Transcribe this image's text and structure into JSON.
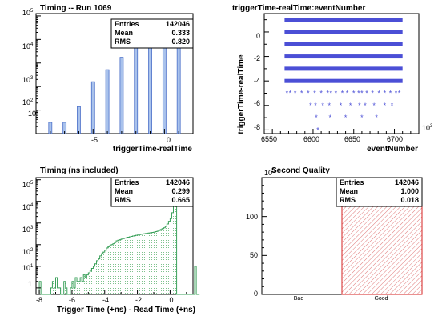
{
  "chart_data": [
    {
      "type": "bar",
      "title": "Timing -- Run 1069",
      "xlabel": "triggerTime-realTime",
      "ylabel": "",
      "yscale": "log",
      "xlim": [
        -9,
        2
      ],
      "ylim": [
        1,
        100000
      ],
      "x_ticks": [
        "-5",
        "0"
      ],
      "y_ticks": [
        "10",
        "10",
        "10",
        "10",
        "10"
      ],
      "y_tick_exponents": [
        "1",
        "2",
        "3",
        "4",
        "5"
      ],
      "bar_color": "#a9c2ec",
      "bar_edge": "#4a6fc9",
      "x": [
        -8,
        -7,
        -6,
        -5,
        -4,
        -3,
        -2,
        -1,
        0,
        1
      ],
      "values": [
        3,
        3,
        14,
        160,
        520,
        1750,
        5000,
        12000,
        50000,
        70000
      ],
      "stats": {
        "labels": [
          "Entries",
          "Mean",
          "RMS"
        ],
        "values": [
          "142046",
          "0.333",
          "0.820"
        ]
      }
    },
    {
      "type": "scatter",
      "title": "triggerTime-realTime:eventNumber",
      "xlabel": "eventNumber",
      "ylabel": "triggerTime-realTime",
      "x_multiplier_base": "10",
      "x_multiplier_exponent": "3",
      "xlim": [
        6540,
        6730
      ],
      "ylim": [
        -8.3,
        1.5
      ],
      "x_ticks": [
        "6550",
        "6600",
        "6650",
        "6700"
      ],
      "y_ticks": [
        "-8",
        "-6",
        "-4",
        "-2",
        "0"
      ],
      "marker_color": "#4b4fd6",
      "bands": [
        {
          "y": 1,
          "x_range": [
            6565,
            6710
          ]
        },
        {
          "y": 0,
          "x_range": [
            6565,
            6710
          ]
        },
        {
          "y": -1,
          "x_range": [
            6565,
            6710
          ]
        },
        {
          "y": -2,
          "x_range": [
            6565,
            6710
          ]
        },
        {
          "y": -3,
          "x_range": [
            6565,
            6710
          ]
        },
        {
          "y": -4,
          "x_range": [
            6565,
            6710
          ]
        }
      ],
      "points": [
        [
          6568,
          -5
        ],
        [
          6572,
          -5
        ],
        [
          6578,
          -5
        ],
        [
          6586,
          -5
        ],
        [
          6594,
          -5
        ],
        [
          6602,
          -5
        ],
        [
          6610,
          -5
        ],
        [
          6618,
          -5
        ],
        [
          6622,
          -5
        ],
        [
          6628,
          -5
        ],
        [
          6636,
          -5
        ],
        [
          6642,
          -5
        ],
        [
          6650,
          -5
        ],
        [
          6656,
          -5
        ],
        [
          6660,
          -5
        ],
        [
          6666,
          -5
        ],
        [
          6673,
          -5
        ],
        [
          6681,
          -5
        ],
        [
          6688,
          -5
        ],
        [
          6695,
          -5
        ],
        [
          6702,
          -5
        ],
        [
          6706,
          -5
        ],
        [
          6597,
          -6
        ],
        [
          6603,
          -6
        ],
        [
          6612,
          -6
        ],
        [
          6620,
          -6
        ],
        [
          6634,
          -6
        ],
        [
          6646,
          -6
        ],
        [
          6657,
          -6
        ],
        [
          6664,
          -6
        ],
        [
          6675,
          -6
        ],
        [
          6688,
          -6
        ],
        [
          6697,
          -6
        ],
        [
          6604,
          -7
        ],
        [
          6621,
          -7
        ],
        [
          6640,
          -7
        ],
        [
          6660,
          -7
        ],
        [
          6678,
          -7
        ],
        [
          6606,
          -8
        ]
      ]
    },
    {
      "type": "bar",
      "title": "Timing (ns included)",
      "xlabel": "Trigger Time (+ns) - Read Time (+ns)",
      "ylabel": "",
      "yscale": "log",
      "xlim": [
        -8.2,
        1.4
      ],
      "ylim": [
        0.5,
        100000
      ],
      "x_ticks": [
        "-8",
        "-6",
        "-4",
        "-2",
        "0"
      ],
      "y_ticks": [
        "1",
        "10",
        "10",
        "10",
        "10",
        "10"
      ],
      "y_tick_exponents": [
        "",
        "1",
        "2",
        "3",
        "4",
        "5"
      ],
      "fill_color": "#d7ebd9",
      "line_color": "#3aa05a",
      "bin_width": 0.1,
      "x_start": -8,
      "values": [
        2,
        0,
        0,
        0,
        0,
        0,
        0,
        1,
        2,
        1,
        3,
        1,
        1,
        0,
        0,
        2,
        1,
        0,
        0,
        1,
        2,
        1,
        3,
        2,
        2,
        3,
        2,
        4,
        3,
        4,
        5,
        6,
        8,
        10,
        13,
        18,
        22,
        30,
        38,
        45,
        55,
        70,
        80,
        90,
        100,
        110,
        130,
        150,
        160,
        170,
        180,
        190,
        200,
        210,
        220,
        230,
        240,
        250,
        260,
        270,
        280,
        290,
        300,
        310,
        320,
        330,
        340,
        350,
        360,
        370,
        380,
        400,
        420,
        450,
        500,
        550,
        600,
        700,
        900,
        1200,
        1600,
        3000,
        10000,
        40000,
        0,
        0,
        0,
        0,
        0,
        0,
        0,
        0,
        0,
        0,
        0,
        10,
        0,
        0
      ],
      "stats": {
        "labels": [
          "Entries",
          "Mean",
          "RMS"
        ],
        "values": [
          "142046",
          "0.299",
          "0.665"
        ]
      }
    },
    {
      "type": "bar",
      "title": "Second Quality",
      "xlabel": "",
      "ylabel": "",
      "y_multiplier_base": "10",
      "y_multiplier_exponent": "3",
      "categories": [
        "Bad",
        "Good"
      ],
      "values": [
        0,
        142.0
      ],
      "ylim": [
        0,
        150
      ],
      "y_ticks": [
        "0",
        "50",
        "100"
      ],
      "bar_color": "#d62020",
      "stats": {
        "labels": [
          "Entries",
          "Mean",
          "RMS"
        ],
        "values": [
          "142046",
          "1.000",
          "0.018"
        ]
      }
    }
  ]
}
